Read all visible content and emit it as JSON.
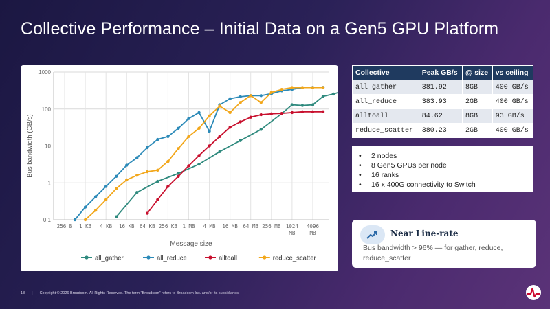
{
  "slide": {
    "title": "Collective Performance – Initial Data on a Gen5 GPU Platform",
    "footer_page": "18",
    "footer_sep": "|",
    "footer_text": "Copyright © 2026 Broadcom. All Rights Reserved. The term \"Broadcom\" refers to Broadcom Inc. and/or its subsidiaries."
  },
  "table": {
    "headers": [
      "Collective",
      "Peak GB/s",
      "@ size",
      "vs ceiling"
    ],
    "rows": [
      [
        "all_gather",
        "381.92",
        "8GB",
        "400 GB/s"
      ],
      [
        "all_reduce",
        "383.93",
        "2GB",
        "400 GB/s"
      ],
      [
        "alltoall",
        "84.62",
        "8GB",
        "93 GB/s"
      ],
      [
        "reduce_scatter",
        "380.23",
        "2GB",
        "400 GB/s"
      ]
    ]
  },
  "bullets": [
    "2 nodes",
    "8 Gen5 GPUs per node",
    "16 ranks",
    "16 x 400G connectivity to Switch"
  ],
  "callout": {
    "title": "Near Line-rate",
    "body": "Bus bandwidth > 96% — for gather, reduce, reduce_scatter",
    "icon": "trend-up-icon"
  },
  "colors": {
    "all_gather": "#2f8a7e",
    "all_reduce": "#2c8ab8",
    "alltoall": "#c8102e",
    "reduce_scatter": "#f2a71b",
    "table_header": "#1f3a5f"
  },
  "chart_data": {
    "type": "line",
    "xlabel": "Message size",
    "ylabel": "Bus bandwidth (GB/s)",
    "y_scale": "log",
    "ylim": [
      0.1,
      1000
    ],
    "y_ticks": [
      "0.1",
      "1",
      "10",
      "100",
      "1000"
    ],
    "x_ticks": [
      "256 B",
      "1 KB",
      "4 KB",
      "16 KB",
      "64 KB",
      "256 KB",
      "1 MB",
      "4 MB",
      "16 MB",
      "64 MB",
      "256 MB",
      "1024 MB",
      "4096 MB"
    ],
    "grid": true,
    "legend_position": "bottom",
    "series": [
      {
        "name": "all_gather",
        "values": [
          null,
          null,
          null,
          null,
          null,
          0.12,
          null,
          0.55,
          null,
          1.1,
          null,
          1.8,
          null,
          3.2,
          null,
          7.0,
          null,
          14,
          null,
          28,
          null,
          75,
          130,
          125,
          130,
          220,
          255,
          310,
          350,
          370,
          380,
          382
        ]
      },
      {
        "name": "all_reduce",
        "values": [
          null,
          0.1,
          0.22,
          0.42,
          0.8,
          1.5,
          3.0,
          4.8,
          9.0,
          15,
          18,
          30,
          55,
          80,
          25,
          130,
          190,
          215,
          230,
          230,
          260,
          310,
          340,
          380,
          384,
          384
        ]
      },
      {
        "name": "alltoall",
        "values": [
          null,
          null,
          null,
          null,
          null,
          null,
          null,
          null,
          0.15,
          0.35,
          0.8,
          1.5,
          2.9,
          5.5,
          10,
          18,
          32,
          45,
          60,
          70,
          74,
          76,
          80,
          84,
          84,
          84
        ]
      },
      {
        "name": "reduce_scatter",
        "values": [
          null,
          null,
          0.1,
          0.18,
          0.35,
          0.7,
          1.2,
          1.6,
          2.0,
          2.2,
          3.8,
          8.5,
          18,
          30,
          65,
          120,
          80,
          150,
          230,
          150,
          280,
          340,
          380,
          380,
          380,
          380
        ]
      }
    ]
  }
}
